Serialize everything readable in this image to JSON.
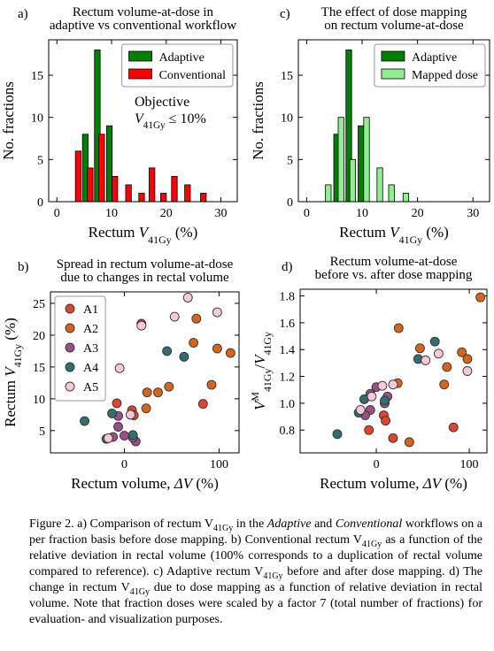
{
  "chart_data": [
    {
      "type": "bar",
      "label": "a)",
      "title": [
        "Rectum volume-at-dose in",
        "adaptive vs conventional workflow"
      ],
      "xlabel": [
        {
          "t": "Rectum "
        },
        {
          "t": "V",
          "i": true
        },
        {
          "t": "41Gy",
          "sub": true
        },
        {
          "t": " (%)"
        }
      ],
      "ylabel": [
        {
          "t": "No. fractions"
        }
      ],
      "annotation": [
        [
          {
            "t": "Objective"
          }
        ],
        [
          {
            "t": "V",
            "i": true
          },
          {
            "t": "41Gy",
            "sub": true
          },
          {
            "t": " ≤ 10%"
          }
        ]
      ],
      "xlim": [
        -1.5,
        33
      ],
      "ylim": [
        0,
        19.2
      ],
      "xticks": [
        0,
        10,
        20,
        30
      ],
      "yticks": [
        0,
        5,
        10,
        15
      ],
      "legend": "upper right",
      "series": [
        {
          "name": "Adaptive",
          "color": "#008000",
          "x": [
            5.2,
            7.4,
            9.6
          ],
          "values": [
            8,
            18,
            9
          ]
        },
        {
          "name": "Conventional",
          "color": "#ff0000",
          "x": [
            3.9,
            6.1,
            8.2,
            10.6,
            13.1,
            15.5,
            17.4,
            19.5,
            21.5,
            23.9,
            26.8
          ],
          "values": [
            6,
            4,
            8,
            3,
            2,
            1,
            4,
            1,
            3,
            2,
            1
          ]
        }
      ]
    },
    {
      "type": "scatter",
      "label": "b)",
      "title": [
        "Spread in rectum volume-at-dose",
        "due to changes in rectal volume"
      ],
      "xlabel": [
        {
          "t": "Rectum volume, "
        },
        {
          "t": "ΔV",
          "i": true
        },
        {
          "t": " (%)"
        }
      ],
      "ylabel": [
        {
          "t": "Rectum "
        },
        {
          "t": "V",
          "i": true
        },
        {
          "t": "41Gy",
          "sub": true
        },
        {
          "t": " (%)"
        }
      ],
      "xlim": [
        -78,
        121
      ],
      "ylim": [
        1.5,
        26.8
      ],
      "xticks": [
        0,
        100
      ],
      "yticks": [
        5,
        10,
        15,
        20,
        25
      ],
      "legend": "upper left",
      "series": [
        {
          "name": "A1",
          "color": "#e0452b",
          "x": [
            -8,
            18,
            83,
            8,
            10
          ],
          "values": [
            9.3,
            21.8,
            9.2,
            8.2,
            7.4
          ]
        },
        {
          "name": "A2",
          "color": "#d8641c",
          "x": [
            24,
            35.5,
            47,
            73,
            76,
            92,
            98,
            112,
            23
          ],
          "values": [
            11.0,
            11.0,
            11.9,
            18.8,
            22.6,
            12.2,
            17.9,
            17.2,
            8.5
          ]
        },
        {
          "name": "A3",
          "color": "#9c4f86",
          "x": [
            -6.5,
            0,
            12,
            9,
            -6.5,
            -12
          ],
          "values": [
            5.6,
            4.2,
            3.3,
            3.9,
            7.3,
            4.0
          ]
        },
        {
          "name": "A4",
          "color": "#2f6e73",
          "x": [
            -42,
            -13,
            -19,
            9,
            45,
            63
          ],
          "values": [
            6.5,
            7.7,
            3.7,
            4.3,
            17.5,
            16.6
          ]
        },
        {
          "name": "A5",
          "color": "#f8c8d8",
          "x": [
            -5,
            18,
            53,
            67,
            98,
            6.5,
            -17
          ],
          "values": [
            14.8,
            21.5,
            22.9,
            25.9,
            23.6,
            7.5,
            3.8
          ]
        }
      ]
    },
    {
      "type": "bar",
      "label": "c)",
      "title": [
        "The effect of dose mapping",
        "on rectum volume-at-dose"
      ],
      "xlabel": [
        {
          "t": "Rectum "
        },
        {
          "t": "V",
          "i": true
        },
        {
          "t": "41Gy",
          "sub": true
        },
        {
          "t": " (%)"
        }
      ],
      "ylabel": [
        {
          "t": "No. fractions"
        }
      ],
      "xlim": [
        -1.5,
        33
      ],
      "ylim": [
        0,
        19.2
      ],
      "xticks": [
        0,
        10,
        20,
        30
      ],
      "yticks": [
        0,
        5,
        10,
        15
      ],
      "legend": "upper right",
      "series": [
        {
          "name": "Adaptive",
          "color": "#008000",
          "x": [
            5.4,
            7.6,
            9.8
          ],
          "values": [
            8,
            18,
            9
          ]
        },
        {
          "name": "Mapped dose",
          "color": "#90ee90",
          "x": [
            3.9,
            6.2,
            8.3,
            10.8,
            13.2,
            15.3,
            17.9
          ],
          "values": [
            2,
            10,
            5,
            10,
            4,
            2,
            1
          ]
        }
      ]
    },
    {
      "type": "scatter",
      "label": "d)",
      "title": [
        "Rectum volume-at-dose",
        "before vs. after dose mapping"
      ],
      "xlabel": [
        {
          "t": "Rectum volume, "
        },
        {
          "t": "ΔV",
          "i": true
        },
        {
          "t": " (%)"
        }
      ],
      "ylabel": [
        {
          "t": "V",
          "i": true
        },
        {
          "t": "M",
          "sup": true
        },
        {
          "t": "41Gy",
          "sub": true
        },
        {
          "t": "/"
        },
        {
          "t": "V",
          "i": true
        },
        {
          "t": "41Gy",
          "sub": true
        }
      ],
      "xlim": [
        -82,
        119
      ],
      "ylim": [
        0.63,
        1.85
      ],
      "xticks": [
        0,
        100
      ],
      "yticks": [
        0.8,
        {
          "value": 1,
          "label": "1.0"
        },
        1.2,
        1.4,
        1.6,
        1.8
      ],
      "series": [
        {
          "name": "A1",
          "color": "#e0452b",
          "x": [
            -8,
            18,
            83,
            8,
            10
          ],
          "values": [
            0.8,
            0.74,
            0.82,
            0.91,
            0.87
          ]
        },
        {
          "name": "A2",
          "color": "#d8641c",
          "x": [
            24,
            35.5,
            47,
            73,
            76,
            92,
            98,
            112,
            23
          ],
          "values": [
            1.56,
            0.71,
            1.41,
            1.14,
            1.27,
            1.38,
            1.33,
            1.79,
            1.15
          ]
        },
        {
          "name": "A3",
          "color": "#9c4f86",
          "x": [
            -6.5,
            0,
            12,
            9,
            -6.5,
            -12
          ],
          "values": [
            1.07,
            1.12,
            1.05,
            1.0,
            0.95,
            0.91
          ]
        },
        {
          "name": "A4",
          "color": "#2f6e73",
          "x": [
            -42,
            -13,
            -19,
            9,
            45,
            63
          ],
          "values": [
            0.77,
            1.03,
            0.93,
            1.02,
            1.33,
            1.46
          ]
        },
        {
          "name": "A5",
          "color": "#f8c8d8",
          "x": [
            -5,
            18,
            53,
            67,
            98,
            6.5,
            -17
          ],
          "values": [
            1.05,
            1.14,
            1.32,
            1.37,
            1.24,
            1.13,
            0.95
          ]
        }
      ]
    }
  ],
  "caption": [
    {
      "t": "Figure 2. a) Comparison of rectum V"
    },
    {
      "t": "41Gy",
      "sub": true
    },
    {
      "t": " in the "
    },
    {
      "t": "Adaptive",
      "i": true
    },
    {
      "t": " and "
    },
    {
      "t": "Conventional",
      "i": true
    },
    {
      "t": " workflows on a per fraction basis before dose mapping. b) Conventional rectum V"
    },
    {
      "t": "41Gy",
      "sub": true
    },
    {
      "t": " as a function of the relative deviation in rectal volume (100% corresponds to a duplication of rectal volume compared to reference). c) Adaptive rectum V"
    },
    {
      "t": "41Gy",
      "sub": true
    },
    {
      "t": " before and after dose mapping. d) The change in rectum V"
    },
    {
      "t": "41Gy",
      "sub": true
    },
    {
      "t": " due to dose mapping as a function of relative deviation in rectal volume. Note that fraction doses were scaled by a factor 7 (total number of fractions) for evaluation- and visualization purposes."
    }
  ]
}
